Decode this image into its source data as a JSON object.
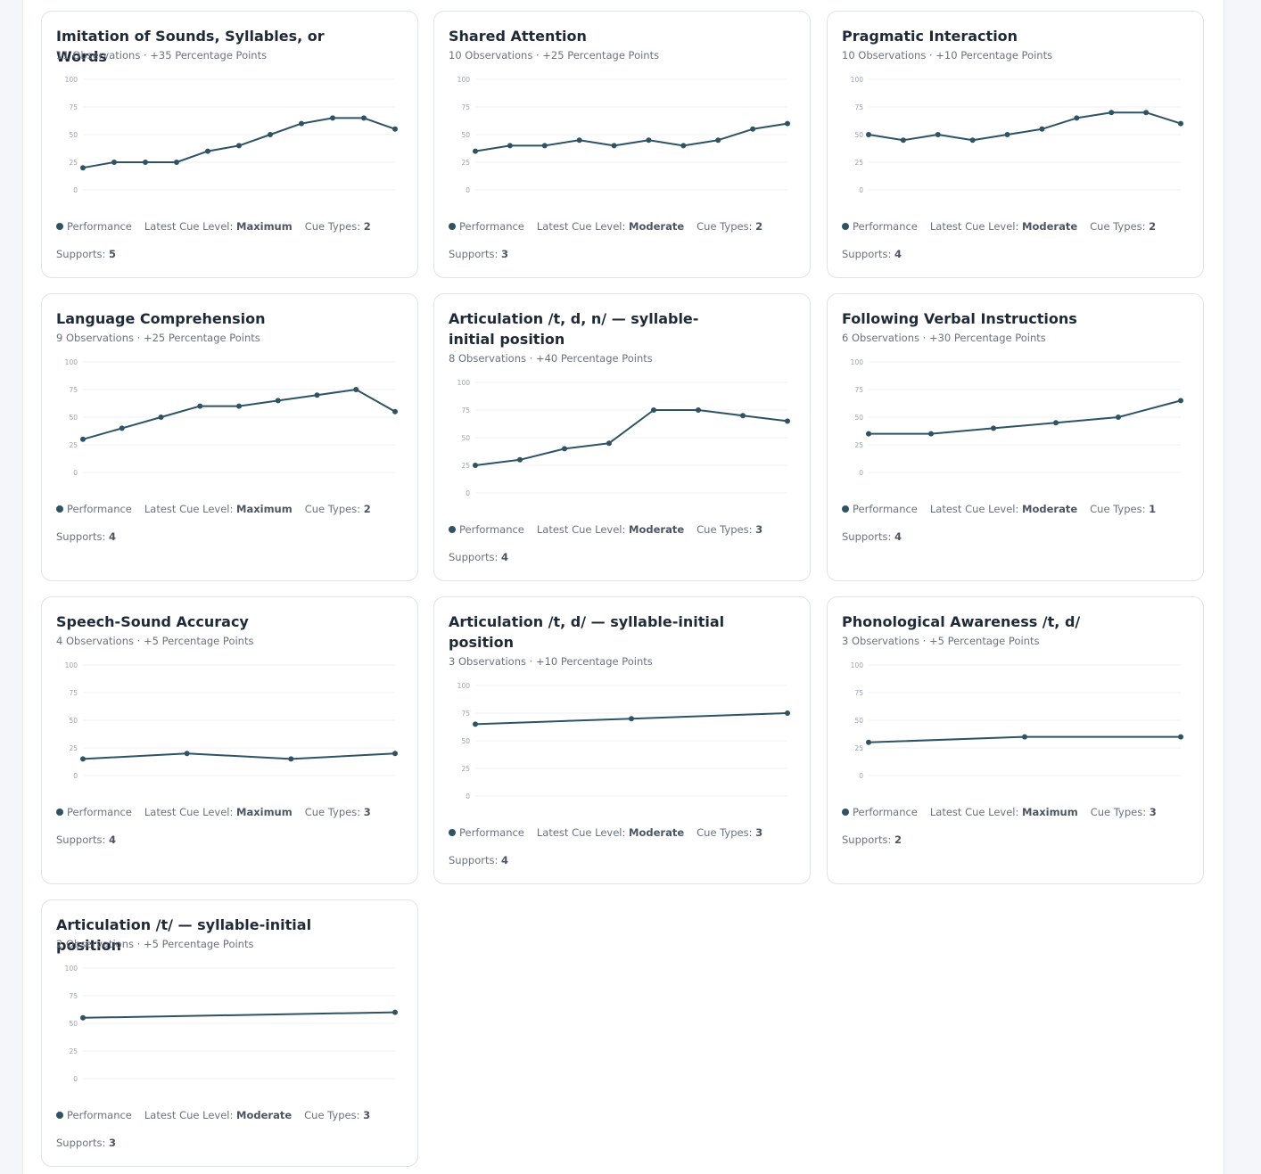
{
  "legend_label": "Performance",
  "cue_level_label": "Latest Cue Level:",
  "cue_types_label": "Cue Types:",
  "supports_label": "Supports:",
  "colors": {
    "line": "#2e5364",
    "grid": "#edf0f3",
    "tick": "#9ca3af"
  },
  "chart_data": [
    {
      "type": "line",
      "title": "Imitation of Sounds, Syllables, or Words",
      "subtitle": "11 Observations · +35 Percentage Points",
      "yticks": [
        0,
        25,
        50,
        75,
        100
      ],
      "ylim": [
        0,
        100
      ],
      "series": [
        {
          "values": [
            20,
            25,
            25,
            25,
            35,
            40,
            50,
            60,
            65,
            65,
            55
          ]
        }
      ],
      "cue_level": "Maximum",
      "cue_types": "2",
      "supports": "5"
    },
    {
      "type": "line",
      "title": "Shared Attention",
      "subtitle": "10 Observations · +25 Percentage Points",
      "yticks": [
        0,
        25,
        50,
        75,
        100
      ],
      "ylim": [
        0,
        100
      ],
      "series": [
        {
          "values": [
            35,
            40,
            40,
            45,
            40,
            45,
            40,
            45,
            55,
            60
          ]
        }
      ],
      "cue_level": "Moderate",
      "cue_types": "2",
      "supports": "3"
    },
    {
      "type": "line",
      "title": "Pragmatic Interaction",
      "subtitle": "10 Observations · +10 Percentage Points",
      "yticks": [
        0,
        25,
        50,
        75,
        100
      ],
      "ylim": [
        0,
        100
      ],
      "series": [
        {
          "values": [
            50,
            45,
            50,
            45,
            50,
            55,
            65,
            70,
            70,
            60
          ]
        }
      ],
      "cue_level": "Moderate",
      "cue_types": "2",
      "supports": "4"
    },
    {
      "type": "line",
      "title": "Language Comprehension",
      "subtitle": "9 Observations · +25 Percentage Points",
      "yticks": [
        0,
        25,
        50,
        75,
        100
      ],
      "ylim": [
        0,
        100
      ],
      "series": [
        {
          "values": [
            30,
            40,
            50,
            60,
            60,
            65,
            70,
            75,
            55
          ]
        }
      ],
      "cue_level": "Maximum",
      "cue_types": "2",
      "supports": "4"
    },
    {
      "type": "line",
      "title": "Articulation /t, d, n/ — syllable-initial position",
      "subtitle": "8 Observations · +40 Percentage Points",
      "yticks": [
        0,
        25,
        50,
        75,
        100
      ],
      "ylim": [
        0,
        100
      ],
      "series": [
        {
          "values": [
            25,
            30,
            40,
            45,
            75,
            75,
            70,
            65
          ]
        }
      ],
      "cue_level": "Moderate",
      "cue_types": "3",
      "supports": "4"
    },
    {
      "type": "line",
      "title": "Following Verbal Instructions",
      "subtitle": "6 Observations · +30 Percentage Points",
      "yticks": [
        0,
        25,
        50,
        75,
        100
      ],
      "ylim": [
        0,
        100
      ],
      "series": [
        {
          "values": [
            35,
            35,
            40,
            45,
            50,
            65
          ]
        }
      ],
      "cue_level": "Moderate",
      "cue_types": "1",
      "supports": "4"
    },
    {
      "type": "line",
      "title": "Speech-Sound Accuracy",
      "subtitle": "4 Observations · +5 Percentage Points",
      "yticks": [
        0,
        25,
        50,
        75,
        100
      ],
      "ylim": [
        0,
        100
      ],
      "series": [
        {
          "values": [
            15,
            20,
            15,
            20
          ]
        }
      ],
      "cue_level": "Maximum",
      "cue_types": "3",
      "supports": "4"
    },
    {
      "type": "line",
      "title": "Articulation /t, d/ — syllable-initial position",
      "subtitle": "3 Observations · +10 Percentage Points",
      "yticks": [
        0,
        25,
        50,
        75,
        100
      ],
      "ylim": [
        0,
        100
      ],
      "series": [
        {
          "values": [
            65,
            70,
            75
          ]
        }
      ],
      "cue_level": "Moderate",
      "cue_types": "3",
      "supports": "4"
    },
    {
      "type": "line",
      "title": "Phonological Awareness /t, d/",
      "subtitle": "3 Observations · +5 Percentage Points",
      "yticks": [
        0,
        25,
        50,
        75,
        100
      ],
      "ylim": [
        0,
        100
      ],
      "series": [
        {
          "values": [
            30,
            35,
            35
          ]
        }
      ],
      "cue_level": "Maximum",
      "cue_types": "3",
      "supports": "2"
    },
    {
      "type": "line",
      "title": "Articulation /t/ — syllable-initial position",
      "subtitle": "2 Observations · +5 Percentage Points",
      "yticks": [
        0,
        25,
        50,
        75,
        100
      ],
      "ylim": [
        0,
        100
      ],
      "series": [
        {
          "values": [
            55,
            60
          ]
        }
      ],
      "cue_level": "Moderate",
      "cue_types": "3",
      "supports": "3"
    }
  ]
}
